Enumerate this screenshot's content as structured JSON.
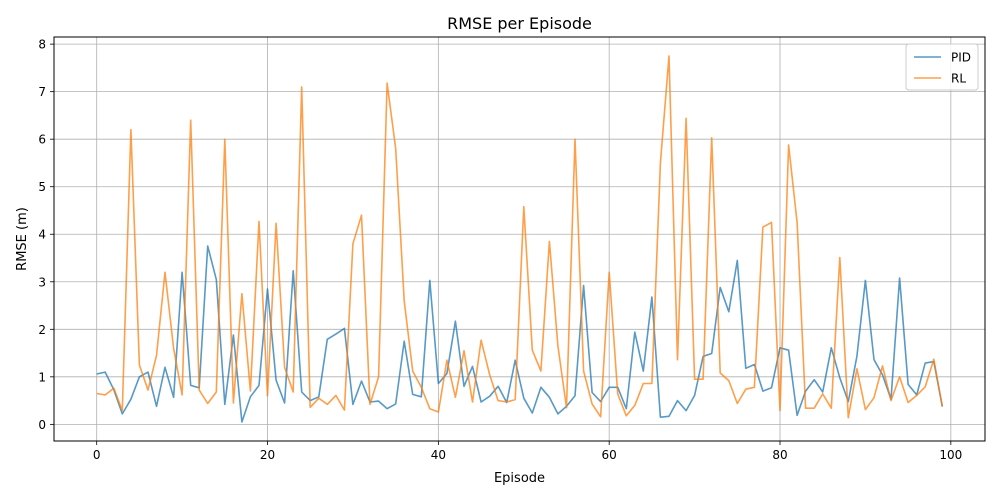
{
  "chart_data": {
    "type": "line",
    "title": "RMSE per Episode",
    "xlabel": "Episode",
    "ylabel": "RMSE (m)",
    "xlim": [
      -5,
      104
    ],
    "ylim": [
      -0.35,
      8.15
    ],
    "xticks": [
      0,
      20,
      40,
      60,
      80,
      100
    ],
    "yticks": [
      0,
      1,
      2,
      3,
      4,
      5,
      6,
      7,
      8
    ],
    "grid": true,
    "legend_position": "top-right",
    "series": [
      {
        "name": "PID",
        "color": "#1f77b4",
        "x": [
          0,
          1,
          2,
          3,
          4,
          5,
          6,
          7,
          8,
          9,
          10,
          11,
          12,
          13,
          14,
          15,
          16,
          17,
          18,
          19,
          20,
          21,
          22,
          23,
          24,
          25,
          26,
          27,
          28,
          29,
          30,
          31,
          32,
          33,
          34,
          35,
          36,
          37,
          38,
          39,
          40,
          41,
          42,
          43,
          44,
          45,
          46,
          47,
          48,
          49,
          50,
          51,
          52,
          53,
          54,
          55,
          56,
          57,
          58,
          59,
          60,
          61,
          62,
          63,
          64,
          65,
          66,
          67,
          68,
          69,
          70,
          71,
          72,
          73,
          74,
          75,
          76,
          77,
          78,
          79,
          80,
          81,
          82,
          83,
          84,
          85,
          86,
          87,
          88,
          89,
          90,
          91,
          92,
          93,
          94,
          95,
          96,
          97,
          98,
          99
        ],
        "values": [
          1.06,
          1.1,
          0.73,
          0.22,
          0.53,
          1.0,
          1.1,
          0.38,
          1.2,
          0.57,
          3.2,
          0.82,
          0.77,
          3.75,
          3.05,
          0.42,
          1.88,
          0.05,
          0.58,
          0.82,
          2.85,
          0.93,
          0.45,
          3.23,
          0.68,
          0.5,
          0.58,
          1.79,
          1.9,
          2.02,
          0.42,
          0.91,
          0.47,
          0.49,
          0.33,
          0.43,
          1.75,
          0.63,
          0.58,
          3.03,
          0.86,
          1.07,
          2.17,
          0.8,
          1.22,
          0.47,
          0.59,
          0.8,
          0.46,
          1.35,
          0.55,
          0.24,
          0.78,
          0.57,
          0.22,
          0.38,
          0.6,
          2.92,
          0.67,
          0.48,
          0.78,
          0.78,
          0.33,
          1.94,
          1.12,
          2.68,
          0.15,
          0.17,
          0.5,
          0.29,
          0.61,
          1.43,
          1.49,
          2.88,
          2.37,
          3.45,
          1.18,
          1.26,
          0.7,
          0.77,
          1.61,
          1.56,
          0.19,
          0.7,
          0.94,
          0.68,
          1.61,
          0.98,
          0.48,
          1.43,
          3.03,
          1.36,
          1.04,
          0.53,
          3.08,
          0.84,
          0.62,
          1.29,
          1.32,
          0.38
        ]
      },
      {
        "name": "RL",
        "color": "#ff7f0e",
        "x": [
          0,
          1,
          2,
          3,
          4,
          5,
          6,
          7,
          8,
          9,
          10,
          11,
          12,
          13,
          14,
          15,
          16,
          17,
          18,
          19,
          20,
          21,
          22,
          23,
          24,
          25,
          26,
          27,
          28,
          29,
          30,
          31,
          32,
          33,
          34,
          35,
          36,
          37,
          38,
          39,
          40,
          41,
          42,
          43,
          44,
          45,
          46,
          47,
          48,
          49,
          50,
          51,
          52,
          53,
          54,
          55,
          56,
          57,
          58,
          59,
          60,
          61,
          62,
          63,
          64,
          65,
          66,
          67,
          68,
          69,
          70,
          71,
          72,
          73,
          74,
          75,
          76,
          77,
          78,
          79,
          80,
          81,
          82,
          83,
          84,
          85,
          86,
          87,
          88,
          89,
          90,
          91,
          92,
          93,
          94,
          95,
          96,
          97,
          98,
          99
        ],
        "values": [
          0.65,
          0.62,
          0.76,
          0.29,
          6.2,
          1.25,
          0.72,
          1.45,
          3.2,
          1.6,
          0.62,
          6.4,
          0.72,
          0.44,
          0.68,
          6.0,
          0.45,
          2.75,
          0.7,
          4.27,
          0.6,
          4.23,
          1.2,
          0.68,
          7.1,
          0.36,
          0.55,
          0.42,
          0.61,
          0.3,
          3.8,
          4.4,
          0.42,
          1.0,
          7.18,
          5.8,
          2.6,
          1.12,
          0.78,
          0.33,
          0.26,
          1.35,
          0.57,
          1.55,
          0.47,
          1.77,
          1.05,
          0.5,
          0.47,
          0.52,
          4.58,
          1.56,
          1.12,
          3.85,
          1.65,
          0.35,
          6.0,
          1.12,
          0.43,
          0.16,
          3.2,
          0.64,
          0.18,
          0.4,
          0.86,
          0.86,
          5.5,
          7.75,
          1.36,
          6.44,
          0.95,
          0.95,
          6.03,
          1.08,
          0.92,
          0.44,
          0.74,
          0.78,
          4.15,
          4.25,
          0.29,
          5.88,
          4.25,
          0.34,
          0.34,
          0.64,
          0.34,
          3.51,
          0.14,
          1.17,
          0.31,
          0.56,
          1.23,
          0.5,
          1.0,
          0.46,
          0.61,
          0.79,
          1.37,
          0.37
        ]
      }
    ]
  }
}
